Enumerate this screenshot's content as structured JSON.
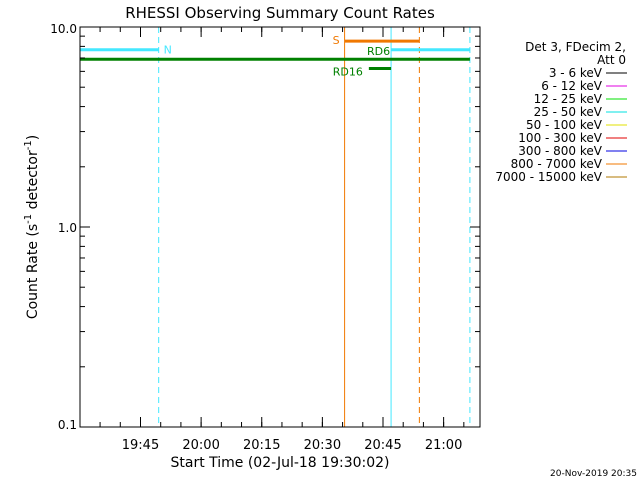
{
  "chart_data": {
    "type": "line",
    "title": "RHESSI Observing Summary Count Rates",
    "xlabel": "Start Time (02-Jul-18 19:30:02)",
    "ylabel": {
      "main": "Count Rate (s",
      "sup1": "-1",
      "mid": " detector",
      "sup2": "-1",
      "end": ")"
    },
    "y_scale": "log",
    "ylim": [
      0.1,
      10.0
    ],
    "y_ticks": [
      {
        "value": 10.0,
        "label": "10.0"
      },
      {
        "value": 1.0,
        "label": "1.0"
      },
      {
        "value": 0.1,
        "label": "0.1"
      }
    ],
    "xlim": [
      "19:30:02",
      "21:09:00"
    ],
    "x_ticks": [
      "19:45",
      "20:00",
      "20:15",
      "20:30",
      "20:45",
      "21:00"
    ],
    "legend_header": [
      "Det 3, FDecim 2,",
      "Att 0"
    ],
    "legend": [
      {
        "label": "3 - 6 keV",
        "color": "#000000"
      },
      {
        "label": "6 - 12 keV",
        "color": "#e000e0"
      },
      {
        "label": "12 - 25 keV",
        "color": "#00e000"
      },
      {
        "label": "25 - 50 keV",
        "color": "#00e0e0"
      },
      {
        "label": "50 - 100 keV",
        "color": "#e0e000"
      },
      {
        "label": "100 - 300 keV",
        "color": "#e00000"
      },
      {
        "label": "300 - 800 keV",
        "color": "#0000e0"
      },
      {
        "label": "800 - 7000 keV",
        "color": "#f07800"
      },
      {
        "label": "7000 - 15000 keV",
        "color": "#b07800"
      }
    ],
    "flag_bars": [
      {
        "label": "N",
        "color": "#44e8ff",
        "segments": [
          [
            "19:30:02",
            "19:49:30"
          ],
          [
            "20:47:00",
            "21:06:30"
          ]
        ],
        "value": 7.7
      },
      {
        "label": "S",
        "color": "#f07800",
        "segments": [
          [
            "20:35:30",
            "20:54:00"
          ]
        ],
        "value": 8.5
      },
      {
        "label": "RD6",
        "color": "#008000",
        "segments": [
          [
            "19:30:02",
            "21:06:30"
          ]
        ],
        "value": 6.9
      },
      {
        "label": "RD16",
        "color": "#008000",
        "segments": [
          [
            "20:41:30",
            "20:47:00"
          ]
        ],
        "value": 6.2
      }
    ],
    "markers": [
      {
        "time": "19:30:02",
        "color": "#44e8ff",
        "style": "solid"
      },
      {
        "time": "19:49:30",
        "color": "#44e8ff",
        "style": "dashed"
      },
      {
        "time": "20:35:30",
        "color": "#f07800",
        "style": "solid"
      },
      {
        "time": "20:47:00",
        "color": "#44e8ff",
        "style": "solid"
      },
      {
        "time": "20:54:00",
        "color": "#f07800",
        "style": "dashed"
      },
      {
        "time": "21:06:30",
        "color": "#44e8ff",
        "style": "dashed"
      }
    ]
  },
  "footer_timestamp": "20-Nov-2019 20:35"
}
